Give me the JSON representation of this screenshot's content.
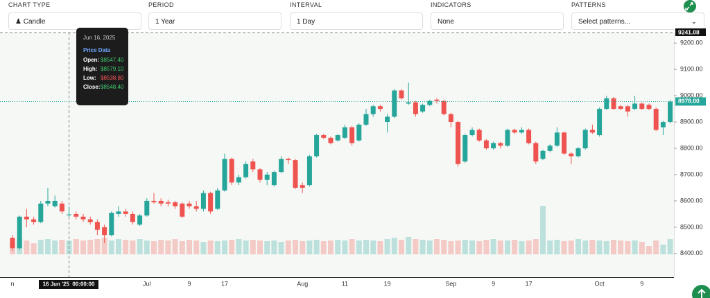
{
  "controls": [
    {
      "label": "CHART TYPE",
      "value": "Candle"
    },
    {
      "label": "PERIOD",
      "value": "1 Year"
    },
    {
      "label": "INTERVAL",
      "value": "1 Day"
    },
    {
      "label": "INDICATORS",
      "value": "None"
    },
    {
      "label": "PATTERNS",
      "value": "Select patterns..."
    }
  ],
  "chart_data": {
    "type": "candlestick",
    "categories": [
      "n",
      null,
      null,
      null,
      null,
      null,
      null,
      null,
      null,
      null,
      null,
      null,
      null,
      null,
      null,
      null,
      null,
      null,
      null,
      "Jul",
      null,
      null,
      null,
      null,
      null,
      "9",
      null,
      null,
      null,
      null,
      "17",
      null,
      null,
      null,
      null,
      null,
      null,
      null,
      null,
      null,
      null,
      "Aug",
      null,
      null,
      null,
      null,
      null,
      "11",
      null,
      null,
      null,
      null,
      null,
      "19",
      null,
      null,
      null,
      null,
      null,
      null,
      null,
      null,
      "Sep",
      null,
      null,
      null,
      null,
      null,
      "9",
      null,
      null,
      null,
      null,
      "17",
      null,
      null,
      null,
      null,
      null,
      null,
      null,
      null,
      null,
      "Oct",
      null,
      null,
      null,
      null,
      null,
      "9",
      null,
      null,
      null,
      null
    ],
    "open": [
      8460,
      8420,
      8540,
      8530,
      8520,
      8590,
      8580,
      8590,
      8547.4,
      8550,
      8540,
      8530,
      8520,
      8500,
      8470,
      8550,
      8560,
      8550,
      8510,
      8545,
      8600,
      8600,
      8595,
      8595,
      8590,
      8590,
      8580,
      8570,
      8630,
      8570,
      8640,
      8760,
      8670,
      8690,
      8750,
      8720,
      8680,
      8660,
      8710,
      8760,
      8755,
      8660,
      8660,
      8770,
      8850,
      8840,
      8830,
      8840,
      8880,
      8830,
      8890,
      8930,
      8960,
      8900,
      8920,
      9020,
      8970,
      8975,
      8940,
      8965,
      8985,
      8980,
      8930,
      8900,
      8750,
      8850,
      8870,
      8830,
      8800,
      8820,
      8810,
      8870,
      8860,
      8870,
      8820,
      8760,
      8790,
      8810,
      8860,
      8780,
      8770,
      8800,
      8870,
      8850,
      8950,
      8990,
      8960,
      8960,
      8950,
      8970,
      8965,
      8950,
      8880,
      8900
    ],
    "high": [
      8470,
      8545,
      8570,
      8540,
      8600,
      8650,
      8620,
      8600,
      8579.1,
      8560,
      8550,
      8540,
      8530,
      8510,
      8560,
      8580,
      8570,
      8560,
      8550,
      8610,
      8630,
      8610,
      8605,
      8600,
      8595,
      8600,
      8600,
      8640,
      8635,
      8650,
      8780,
      8765,
      8700,
      8750,
      8760,
      8725,
      8710,
      8715,
      8770,
      8765,
      8760,
      8670,
      8775,
      8855,
      8855,
      8845,
      8855,
      8890,
      8885,
      8895,
      8950,
      8965,
      8965,
      8930,
      9025,
      9025,
      9050,
      8980,
      8970,
      8985,
      8990,
      8985,
      8935,
      8905,
      8855,
      8880,
      8875,
      8835,
      8825,
      8825,
      8875,
      8875,
      8880,
      8875,
      8825,
      8795,
      8815,
      8880,
      8865,
      8785,
      8805,
      8875,
      8890,
      8955,
      9000,
      8995,
      8965,
      8965,
      9000,
      8975,
      8970,
      8955,
      8905,
      8985
    ],
    "low": [
      8410,
      8415,
      8500,
      8510,
      8515,
      8580,
      8575,
      8550,
      8538.8,
      8530,
      8520,
      8510,
      8470,
      8440,
      8465,
      8540,
      8540,
      8510,
      8505,
      8540,
      8590,
      8580,
      8580,
      8570,
      8535,
      8570,
      8560,
      8560,
      8550,
      8565,
      8635,
      8660,
      8660,
      8685,
      8710,
      8670,
      8660,
      8655,
      8705,
      8740,
      8645,
      8630,
      8655,
      8765,
      8835,
      8815,
      8825,
      8835,
      8810,
      8825,
      8885,
      8920,
      8940,
      8860,
      8915,
      8985,
      8965,
      8920,
      8935,
      8960,
      8970,
      8925,
      8880,
      8730,
      8745,
      8845,
      8825,
      8795,
      8795,
      8800,
      8805,
      8855,
      8855,
      8815,
      8740,
      8755,
      8785,
      8805,
      8775,
      8740,
      8765,
      8795,
      8855,
      8845,
      8945,
      8945,
      8945,
      8920,
      8945,
      8945,
      8945,
      8865,
      8850,
      8895
    ],
    "close": [
      8420,
      8540,
      8530,
      8520,
      8590,
      8600,
      8600,
      8560,
      8548.4,
      8540,
      8530,
      8520,
      8490,
      8470,
      8555,
      8560,
      8550,
      8520,
      8545,
      8600,
      8595,
      8590,
      8590,
      8580,
      8540,
      8580,
      8570,
      8630,
      8560,
      8640,
      8760,
      8670,
      8690,
      8740,
      8720,
      8680,
      8700,
      8710,
      8760,
      8755,
      8650,
      8650,
      8770,
      8850,
      8840,
      8820,
      8850,
      8880,
      8820,
      8890,
      8930,
      8960,
      8950,
      8920,
      9020,
      8990,
      8975,
      8930,
      8965,
      8980,
      8980,
      8930,
      8900,
      8740,
      8850,
      8870,
      8830,
      8800,
      8820,
      8810,
      8870,
      8860,
      8870,
      8820,
      8750,
      8790,
      8810,
      8860,
      8780,
      8770,
      8800,
      8870,
      8860,
      8950,
      8990,
      8950,
      8950,
      8940,
      8970,
      8950,
      8950,
      8870,
      8900,
      8978
    ],
    "volume": [
      18,
      22,
      20,
      16,
      21,
      22,
      20,
      21,
      20,
      22,
      20,
      21,
      22,
      24,
      20,
      22,
      21,
      20,
      22,
      20,
      19,
      21,
      20,
      22,
      19,
      21,
      20,
      18,
      20,
      19,
      20,
      21,
      22,
      20,
      21,
      20,
      19,
      20,
      18,
      20,
      21,
      19,
      20,
      21,
      19,
      20,
      21,
      20,
      22,
      20,
      21,
      20,
      19,
      22,
      24,
      21,
      25,
      22,
      21,
      20,
      22,
      21,
      19,
      20,
      21,
      20,
      19,
      21,
      22,
      20,
      20,
      21,
      19,
      20,
      22,
      70,
      20,
      21,
      19,
      20,
      22,
      20,
      21,
      20,
      19,
      21,
      20,
      19,
      20,
      18,
      12,
      20,
      14,
      22
    ],
    "up_color": "#26a69a",
    "down_color": "#ef5350",
    "ylim": [
      8310,
      9240
    ],
    "yticks": [
      {
        "value": 8400,
        "label": "8400.00"
      },
      {
        "value": 8500,
        "label": "8500.00"
      },
      {
        "value": 8600,
        "label": "8600.00"
      },
      {
        "value": 8700,
        "label": "8700.00"
      },
      {
        "value": 8800,
        "label": "8800.00"
      },
      {
        "value": 8900,
        "label": "8900.00"
      },
      {
        "value": 9000,
        "label": "9000.00"
      },
      {
        "value": 9100,
        "label": "9100.00"
      },
      {
        "value": 9200,
        "label": "9200.00"
      }
    ],
    "last_price_label": "8978.00",
    "crosshair_price_label": "9241.08",
    "crosshair_time_label": "16 Jun '25  00:00:00",
    "tooltip": {
      "date": "Jun 16, 2025",
      "heading": "Price Data",
      "rows": [
        {
          "label": "Open:",
          "value": "$8547.40"
        },
        {
          "label": "High:",
          "value": "$8579.10"
        },
        {
          "label": "Low:",
          "value": "$8538.80"
        },
        {
          "label": "Close:",
          "value": "$8548.40"
        }
      ]
    }
  }
}
